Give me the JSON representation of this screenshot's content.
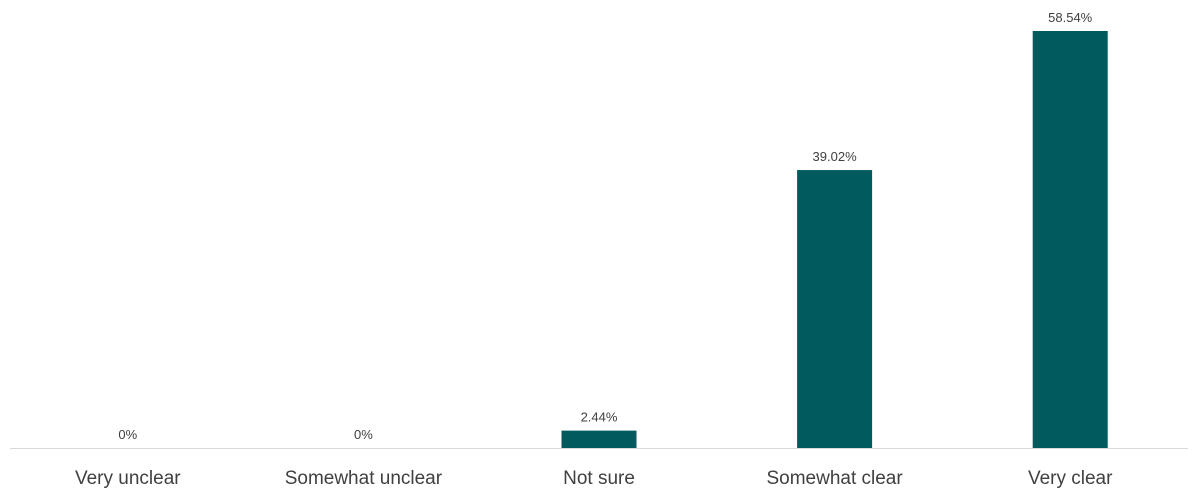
{
  "chart_data": {
    "type": "bar",
    "categories": [
      "Very unclear",
      "Somewhat unclear",
      "Not sure",
      "Somewhat clear",
      "Very clear"
    ],
    "values": [
      0,
      0,
      2.44,
      39.02,
      58.54
    ],
    "data_labels": [
      "0%",
      "0%",
      "2.44%",
      "39.02%",
      "58.54%"
    ],
    "title": "",
    "xlabel": "",
    "ylabel": "",
    "ylim": [
      0,
      60
    ],
    "grid": false,
    "legend": "none",
    "bar_color": "#005a5e",
    "axis_color": "#d9d9d9",
    "text_color": "#404040"
  }
}
